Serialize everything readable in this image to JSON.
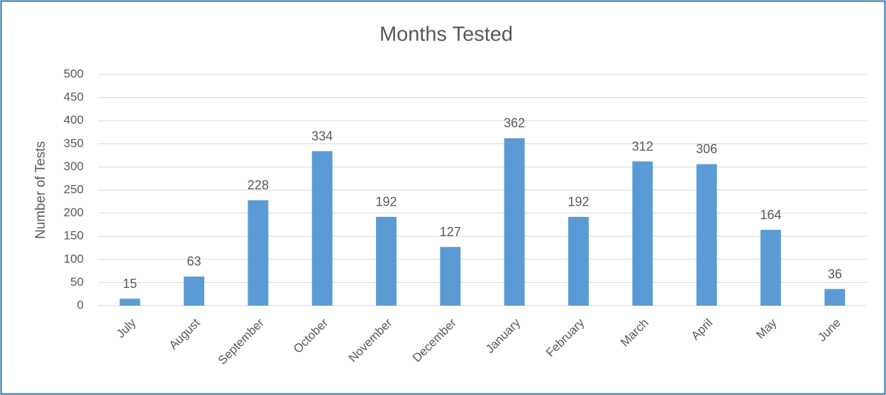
{
  "chart_data": {
    "type": "bar",
    "title": "Months Tested",
    "y_label": "Number of Tests",
    "categories": [
      "July",
      "August",
      "September",
      "October",
      "November",
      "December",
      "January",
      "February",
      "March",
      "April",
      "May",
      "June"
    ],
    "values": [
      15,
      63,
      228,
      334,
      192,
      127,
      362,
      192,
      312,
      306,
      164,
      36
    ],
    "color": "#5b9bd5",
    "ylim": [
      0,
      500
    ],
    "yticks": [
      0,
      50,
      100,
      150,
      200,
      250,
      300,
      350,
      400,
      450,
      500
    ],
    "grid": true,
    "data_labels": true
  }
}
